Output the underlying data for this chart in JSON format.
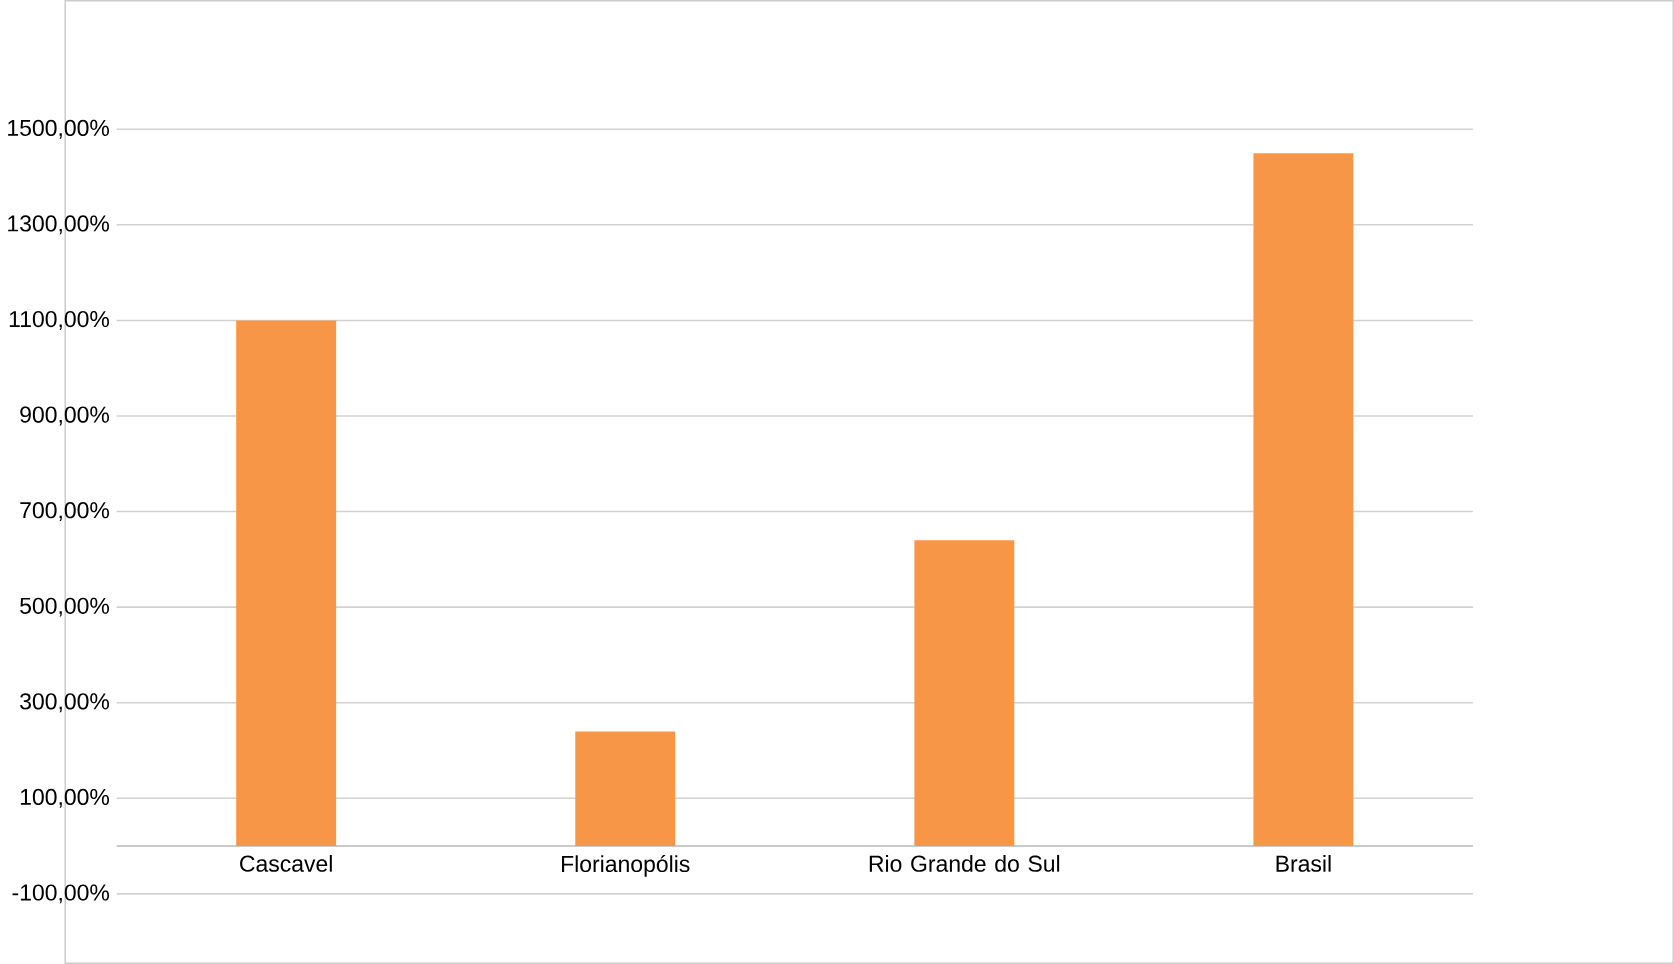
{
  "chart_data": {
    "type": "bar",
    "categories": [
      "Cascavel",
      "Florianopólis",
      "Rio Grande do Sul",
      "Brasil"
    ],
    "values": [
      1100,
      240,
      640,
      1450
    ],
    "color": "#f79646",
    "ylim": [
      -100,
      1500
    ],
    "yticks": [
      {
        "value": -100,
        "label": "-100,00%"
      },
      {
        "value": 100,
        "label": "100,00%"
      },
      {
        "value": 300,
        "label": "300,00%"
      },
      {
        "value": 500,
        "label": "500,00%"
      },
      {
        "value": 700,
        "label": "700,00%"
      },
      {
        "value": 900,
        "label": "900,00%"
      },
      {
        "value": 1100,
        "label": "1100,00%"
      },
      {
        "value": 1300,
        "label": "1300,00%"
      },
      {
        "value": 1500,
        "label": "1500,00%"
      }
    ],
    "grid": "y"
  }
}
